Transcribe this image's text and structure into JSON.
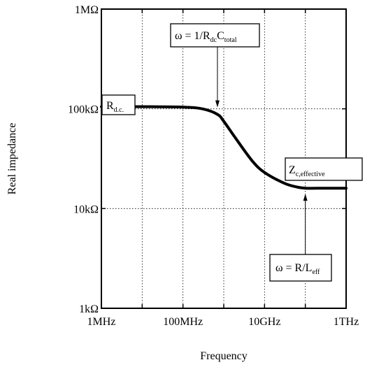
{
  "chart_data": {
    "type": "line",
    "xlabel": "Frequency",
    "ylabel": "Real impedance",
    "x_scale": "log",
    "y_scale": "log",
    "xlim_hz": [
      1000000,
      1000000000000
    ],
    "ylim_ohm": [
      1000,
      1000000
    ],
    "grid": true,
    "x_ticks": [
      {
        "value": 1000000,
        "label": "1MHz"
      },
      {
        "value": 100000000,
        "label": "100MHz"
      },
      {
        "value": 10000000000,
        "label": "10GHz"
      },
      {
        "value": 1000000000000,
        "label": "1THz"
      }
    ],
    "x_grid_values": [
      10000000,
      100000000,
      1000000000,
      10000000000,
      100000000000
    ],
    "y_ticks": [
      {
        "value": 1000,
        "label": "1kΩ"
      },
      {
        "value": 10000,
        "label": "10kΩ"
      },
      {
        "value": 100000,
        "label": "100kΩ"
      },
      {
        "value": 1000000,
        "label": "1MΩ"
      }
    ],
    "series": [
      {
        "x": [
          1000000,
          10000000,
          100000000,
          300000000,
          700000000,
          1000000000,
          2000000000,
          5000000000,
          10000000000,
          30000000000,
          60000000000,
          100000000000,
          300000000000,
          1000000000000
        ],
        "y": [
          105000,
          105000,
          104000,
          100000,
          88000,
          75000,
          50000,
          30000,
          23000,
          18000,
          16500,
          16000,
          16000,
          16000
        ]
      }
    ],
    "annotations": [
      {
        "id": "rdc",
        "label_main": "R",
        "label_sub": "d.c."
      },
      {
        "id": "corner1",
        "label_main": "ω = 1/R",
        "label_sub": "dc",
        "label_main2": "C",
        "label_sub2": "total",
        "arrow_target_x": 700000000,
        "arrow_target_y": 88000
      },
      {
        "id": "zc",
        "label_main": "Z",
        "label_sub": "c,effective"
      },
      {
        "id": "corner2",
        "label_main": "ω = R/L",
        "label_sub": "eff",
        "arrow_target_x": 100000000000,
        "arrow_target_y": 16000
      }
    ]
  }
}
